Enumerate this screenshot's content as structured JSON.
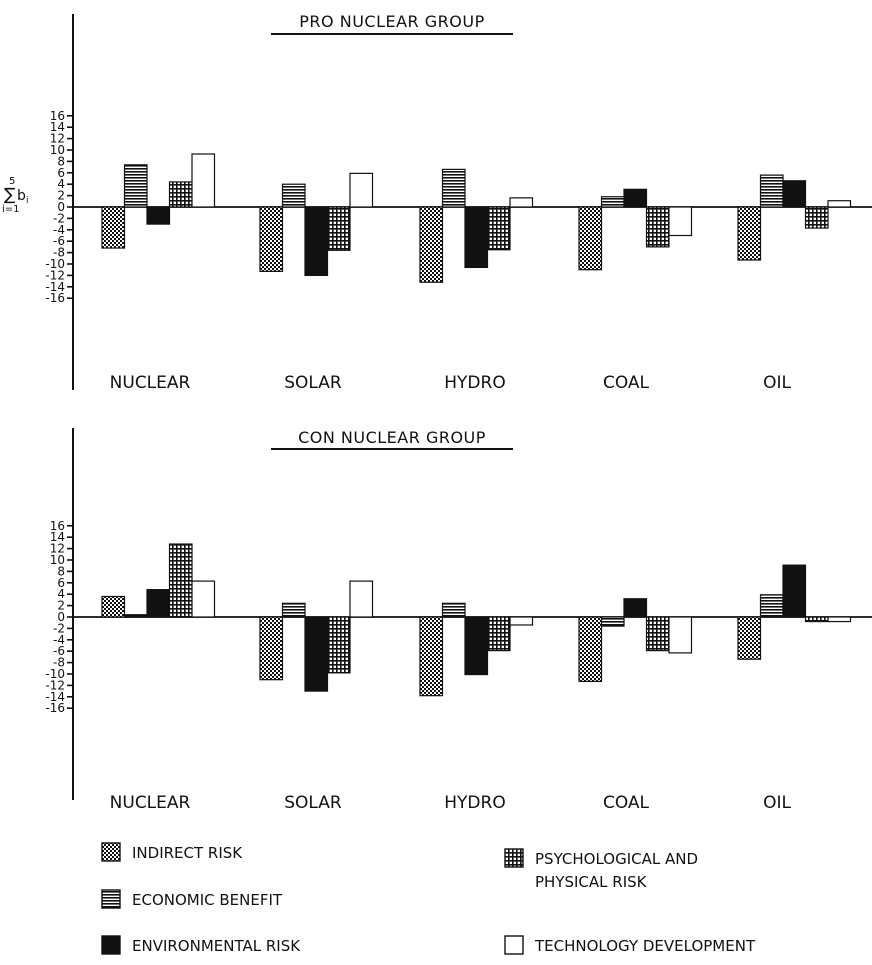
{
  "chart_data": [
    {
      "type": "bar",
      "title": "PRO NUCLEAR GROUP",
      "ylabel_formula": {
        "sum": "∑",
        "upper": "5",
        "term": "b",
        "subscript": "i",
        "lower": "i=1"
      },
      "categories": [
        "NUCLEAR",
        "SOLAR",
        "HYDRO",
        "COAL",
        "OIL"
      ],
      "ylim": [
        -16,
        16
      ],
      "yticks": [
        "16",
        "14",
        "12",
        "10",
        "8",
        "6",
        "4",
        "2",
        "0",
        "-2",
        "-4",
        "-6",
        "-8",
        "-10",
        "-12",
        "-14",
        "-16"
      ],
      "series": [
        {
          "name": "INDIRECT RISK",
          "values": [
            -7.2,
            -11.3,
            -13.2,
            -11.0,
            -9.3
          ]
        },
        {
          "name": "ECONOMIC BENEFIT",
          "values": [
            7.4,
            4.0,
            6.6,
            1.8,
            5.6
          ]
        },
        {
          "name": "ENVIRONMENTAL RISK",
          "values": [
            -3.0,
            -12.0,
            -10.6,
            3.1,
            4.6
          ]
        },
        {
          "name": "PSYCHOLOGICAL AND PHYSICAL RISK",
          "values": [
            4.4,
            -7.6,
            -7.5,
            -7.0,
            -3.7
          ]
        },
        {
          "name": "TECHNOLOGY DEVELOPMENT",
          "values": [
            9.3,
            5.9,
            1.6,
            -5.0,
            1.1
          ]
        }
      ],
      "legend": "bottom"
    },
    {
      "type": "bar",
      "title": "CON NUCLEAR GROUP",
      "categories": [
        "NUCLEAR",
        "SOLAR",
        "HYDRO",
        "COAL",
        "OIL"
      ],
      "ylim": [
        -16,
        16
      ],
      "yticks": [
        "16",
        "14",
        "12",
        "10",
        "8",
        "6",
        "4",
        "2",
        "0",
        "-2",
        "-4",
        "-6",
        "-8",
        "-10",
        "-12",
        "-14",
        "-16"
      ],
      "series": [
        {
          "name": "INDIRECT RISK",
          "values": [
            3.6,
            -11.0,
            -13.8,
            -11.3,
            -7.4
          ]
        },
        {
          "name": "ECONOMIC BENEFIT",
          "values": [
            0.4,
            2.4,
            2.4,
            -1.6,
            3.9
          ]
        },
        {
          "name": "ENVIRONMENTAL RISK",
          "values": [
            4.8,
            -13.0,
            -10.1,
            3.2,
            9.1
          ]
        },
        {
          "name": "PSYCHOLOGICAL AND PHYSICAL RISK",
          "values": [
            12.8,
            -9.8,
            -5.9,
            -5.9,
            -0.8
          ]
        },
        {
          "name": "TECHNOLOGY DEVELOPMENT",
          "values": [
            6.3,
            6.3,
            -1.4,
            -6.3,
            -0.8
          ]
        }
      ],
      "legend": "bottom"
    }
  ],
  "legend": {
    "items": [
      {
        "label": "INDIRECT RISK",
        "pattern": "dots"
      },
      {
        "label": "ECONOMIC BENEFIT",
        "pattern": "hlines"
      },
      {
        "label": "ENVIRONMENTAL RISK",
        "pattern": "solid"
      },
      {
        "label": "PSYCHOLOGICAL AND",
        "label2": "PHYSICAL RISK",
        "pattern": "grid"
      },
      {
        "label": "TECHNOLOGY DEVELOPMENT",
        "pattern": "empty"
      }
    ]
  },
  "colors": {
    "ink": "#111111",
    "background": "#ffffff"
  }
}
